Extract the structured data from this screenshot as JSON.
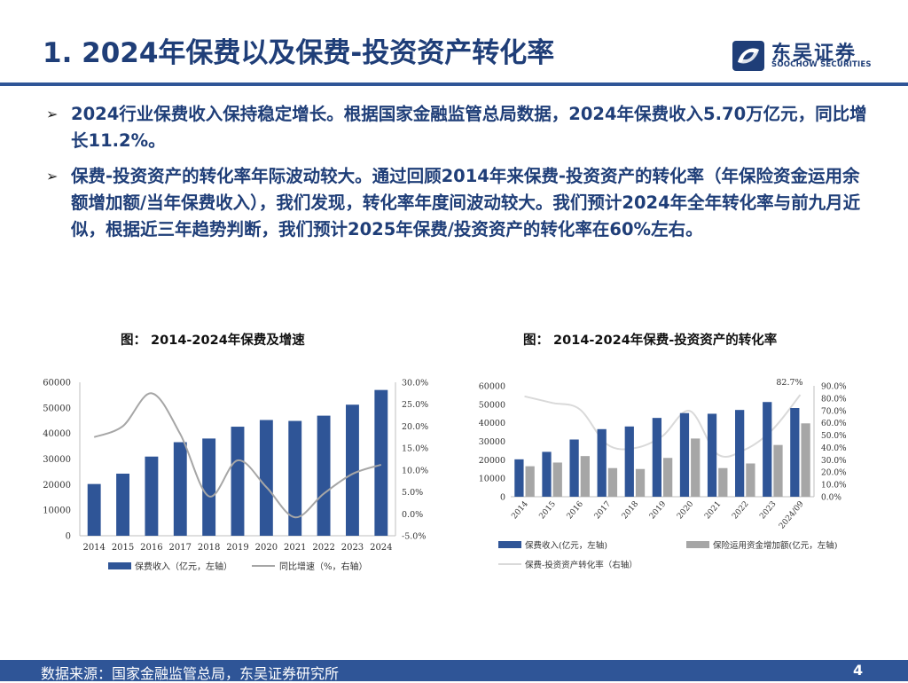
{
  "page": {
    "title": "1. 2024年保费以及保费-投资资产转化率",
    "logo_cn": "东吴证券",
    "logo_en": "SOOCHOW SECURITIES",
    "bullets": [
      "2024行业保费收入保持稳定增长。根据国家金融监管总局数据，2024年保费收入5.70万亿元，同比增长11.2%。",
      "保费-投资资产的转化率年际波动较大。通过回顾2014年来保费-投资资产的转化率（年保险资金运用余额增加额/当年保费收入），我们发现，转化率年度间波动较大。我们预计2024年全年转化率与前九月近似，根据近三年趋势判断，我们预计2025年保费/投资资产的转化率在60%左右。"
    ],
    "source": "数据来源：国家金融监管总局，东吴证券研究所",
    "page_number": "4",
    "colors": {
      "title": "#1f3e78",
      "rule": "#2f5597",
      "bar_blue": "#2f5597",
      "bar_gray": "#a6a6a6",
      "line_gray": "#a6a6a6",
      "line_light": "#d9d9d9"
    }
  },
  "chart_data": [
    {
      "type": "bar",
      "title": "图：  2014-2024年保费及增速",
      "categories": [
        "2014",
        "2015",
        "2016",
        "2017",
        "2018",
        "2019",
        "2020",
        "2021",
        "2022",
        "2023",
        "2024"
      ],
      "series": [
        {
          "name": "保费收入（亿元，左轴）",
          "type": "bar",
          "axis": "left",
          "values": [
            20235,
            24283,
            30959,
            36581,
            38017,
            42645,
            45257,
            44900,
            46957,
            51247,
            57000
          ]
        },
        {
          "name": "同比增速（%，右轴）",
          "type": "line",
          "axis": "right",
          "values": [
            17.5,
            20.0,
            27.5,
            18.2,
            4.0,
            12.2,
            6.1,
            -0.8,
            4.6,
            9.1,
            11.2
          ]
        }
      ],
      "yleft": {
        "min": 0,
        "max": 60000,
        "ticks": [
          "0",
          "10000",
          "20000",
          "30000",
          "40000",
          "50000",
          "60000"
        ]
      },
      "yright": {
        "min": -5,
        "max": 30,
        "ticks": [
          "-5.0%",
          "0.0%",
          "5.0%",
          "10.0%",
          "15.0%",
          "20.0%",
          "25.0%",
          "30.0%"
        ]
      },
      "legend": [
        "保费收入（亿元，左轴）",
        "同比增速（%，右轴）"
      ]
    },
    {
      "type": "bar",
      "title": "图：  2014-2024年保费-投资资产的转化率",
      "categories": [
        "2014",
        "2015",
        "2016",
        "2017",
        "2018",
        "2019",
        "2020",
        "2021",
        "2022",
        "2023",
        "2024/09"
      ],
      "series": [
        {
          "name": "保费收入(亿元，左轴)",
          "type": "bar",
          "axis": "left",
          "values": [
            20235,
            24283,
            30959,
            36581,
            38017,
            42645,
            45257,
            44900,
            46957,
            51247,
            48000
          ]
        },
        {
          "name": "保险运用资金增加额(亿元，左轴)",
          "type": "bar",
          "axis": "left",
          "values": [
            16500,
            18500,
            22000,
            15500,
            15000,
            21000,
            31500,
            15500,
            18000,
            28000,
            39700
          ]
        },
        {
          "name": "保费-投资资产转化率（右轴）",
          "type": "line",
          "axis": "right",
          "values": [
            81.5,
            76.2,
            71.0,
            42.4,
            39.5,
            49.2,
            69.6,
            34.5,
            38.3,
            54.6,
            82.7
          ]
        }
      ],
      "annotation": "82.7%",
      "yleft": {
        "min": 0,
        "max": 60000,
        "ticks": [
          "0",
          "10000",
          "20000",
          "30000",
          "40000",
          "50000",
          "60000"
        ]
      },
      "yright": {
        "min": 0,
        "max": 90,
        "ticks": [
          "0.0%",
          "10.0%",
          "20.0%",
          "30.0%",
          "40.0%",
          "50.0%",
          "60.0%",
          "70.0%",
          "80.0%",
          "90.0%"
        ]
      },
      "legend": [
        "保费收入(亿元，左轴)",
        "保险运用资金增加额(亿元，左轴)",
        "保费-投资资产转化率（右轴）"
      ]
    }
  ]
}
